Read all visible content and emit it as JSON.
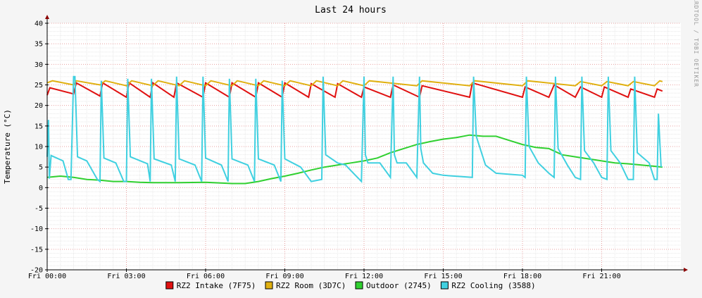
{
  "chart_data": {
    "type": "line",
    "title": "Last 24 hours",
    "ylabel": "Temperature (°C)",
    "xlabel": "",
    "watermark": "RRDTOOL / TOBI OETIKER",
    "ylim": [
      -20,
      40
    ],
    "yticks": [
      40,
      35,
      30,
      25,
      20,
      15,
      10,
      5,
      0,
      -5,
      -10,
      -15,
      -20
    ],
    "ytick_labels": [
      "40",
      "35",
      "30",
      "25",
      "20",
      "15",
      "10",
      "5",
      "0",
      "-5",
      "-10",
      "-15",
      "-20"
    ],
    "xlim": [
      0,
      24
    ],
    "x_unit": "hours since Fri 00:00",
    "xticks": [
      0,
      3,
      6,
      9,
      12,
      15,
      18,
      21
    ],
    "xtick_labels": [
      "Fri 00:00",
      "Fri 03:00",
      "Fri 06:00",
      "Fri 09:00",
      "Fri 12:00",
      "Fri 15:00",
      "Fri 18:00",
      "Fri 21:00"
    ],
    "grid": true,
    "legend_position": "bottom",
    "series": [
      {
        "name": "RZ2 Intake (7F75)",
        "color": "#e01010",
        "x": [
          0.0,
          0.1,
          1.0,
          1.1,
          2.0,
          2.1,
          3.0,
          3.1,
          3.9,
          4.0,
          4.8,
          4.9,
          5.9,
          6.0,
          6.9,
          7.0,
          7.9,
          8.0,
          8.9,
          9.0,
          9.9,
          10.0,
          10.9,
          11.0,
          11.9,
          12.0,
          13.0,
          13.1,
          14.1,
          14.2,
          16.0,
          16.1,
          18.0,
          18.1,
          19.0,
          19.2,
          20.0,
          20.2,
          21.0,
          21.1,
          22.0,
          22.1,
          23.0,
          23.1,
          23.3
        ],
        "y": [
          22.5,
          24.3,
          22.8,
          25.5,
          22.3,
          25.5,
          22.0,
          25.5,
          22.0,
          25.5,
          22.0,
          25.5,
          22.0,
          25.5,
          22.0,
          25.5,
          22.0,
          25.5,
          22.0,
          25.5,
          22.0,
          25.3,
          22.0,
          25.3,
          22.0,
          24.5,
          22.0,
          25.0,
          22.0,
          24.8,
          22.0,
          25.5,
          22.0,
          24.5,
          22.0,
          25.0,
          22.0,
          24.5,
          22.0,
          24.5,
          22.0,
          24.0,
          22.0,
          24.0,
          23.5
        ]
      },
      {
        "name": "RZ2 Room (3D7C)",
        "color": "#e0b010",
        "x": [
          0.0,
          0.2,
          1.0,
          1.1,
          2.0,
          2.2,
          3.0,
          3.2,
          4.0,
          4.2,
          5.0,
          5.2,
          6.0,
          6.2,
          7.0,
          7.2,
          8.0,
          8.2,
          9.0,
          9.2,
          10.0,
          10.2,
          11.0,
          11.2,
          12.0,
          12.2,
          14.0,
          14.2,
          16.0,
          16.2,
          18.0,
          18.2,
          20.0,
          20.2,
          21.0,
          21.2,
          22.0,
          22.2,
          23.0,
          23.2,
          23.3
        ],
        "y": [
          25.5,
          26.0,
          25.0,
          26.0,
          25.0,
          26.0,
          24.8,
          26.0,
          24.8,
          26.0,
          24.8,
          26.0,
          24.8,
          26.0,
          24.8,
          26.0,
          24.8,
          26.0,
          24.8,
          26.0,
          24.8,
          26.0,
          24.8,
          26.0,
          24.8,
          26.0,
          24.8,
          26.0,
          24.8,
          26.0,
          24.8,
          26.0,
          24.8,
          25.8,
          24.8,
          25.8,
          24.8,
          25.8,
          24.8,
          26.0,
          25.8
        ]
      },
      {
        "name": "Outdoor (2745)",
        "color": "#30d030",
        "x": [
          0.0,
          0.5,
          1.0,
          1.5,
          2.0,
          2.5,
          3.0,
          3.5,
          4.0,
          5.0,
          6.0,
          7.0,
          7.5,
          8.0,
          8.5,
          9.0,
          9.5,
          10.0,
          10.5,
          11.0,
          11.5,
          12.0,
          12.5,
          13.0,
          13.5,
          14.0,
          14.5,
          15.0,
          15.5,
          16.0,
          16.5,
          17.0,
          17.5,
          18.0,
          18.5,
          19.0,
          19.5,
          20.0,
          20.5,
          21.0,
          21.5,
          22.0,
          22.5,
          23.0,
          23.3
        ],
        "y": [
          2.5,
          2.8,
          2.5,
          2.0,
          1.8,
          1.5,
          1.5,
          1.3,
          1.2,
          1.2,
          1.3,
          1.0,
          1.0,
          1.5,
          2.2,
          2.8,
          3.5,
          4.3,
          5.0,
          5.5,
          6.0,
          6.5,
          7.2,
          8.5,
          9.5,
          10.5,
          11.2,
          11.8,
          12.2,
          12.8,
          12.5,
          12.5,
          11.5,
          10.5,
          9.8,
          9.5,
          8.0,
          7.5,
          7.0,
          6.5,
          6.0,
          5.8,
          5.5,
          5.2,
          5.0
        ]
      },
      {
        "name": "RZ2 Cooling (3588)",
        "color": "#40d0e0",
        "x": [
          0.0,
          0.05,
          0.08,
          0.15,
          0.6,
          0.8,
          0.9,
          1.0,
          1.05,
          1.15,
          1.5,
          1.9,
          2.0,
          2.05,
          2.15,
          2.6,
          2.9,
          3.0,
          3.05,
          3.15,
          3.8,
          3.9,
          3.95,
          4.05,
          4.7,
          4.85,
          4.9,
          5.0,
          5.6,
          5.85,
          5.9,
          6.0,
          6.6,
          6.85,
          6.9,
          7.0,
          7.6,
          7.85,
          7.9,
          8.0,
          8.6,
          8.85,
          8.9,
          9.0,
          9.6,
          10.0,
          10.4,
          10.45,
          10.55,
          11.0,
          11.3,
          11.9,
          12.0,
          12.05,
          12.15,
          12.6,
          13.0,
          13.1,
          13.15,
          13.25,
          13.6,
          14.0,
          14.1,
          14.15,
          14.25,
          14.6,
          15.0,
          16.1,
          16.15,
          16.25,
          16.6,
          17.0,
          18.0,
          18.1,
          18.15,
          18.25,
          18.6,
          19.0,
          19.2,
          19.25,
          19.35,
          19.7,
          20.0,
          20.2,
          20.25,
          20.35,
          20.7,
          21.0,
          21.2,
          21.25,
          21.35,
          21.7,
          22.0,
          22.2,
          22.25,
          22.35,
          22.8,
          23.0,
          23.1,
          23.15,
          23.25
        ],
        "y": [
          7.5,
          16.5,
          2.2,
          7.8,
          6.5,
          2.0,
          2.0,
          27.0,
          27.0,
          7.5,
          6.5,
          2.0,
          1.5,
          26.0,
          7.2,
          6.0,
          1.5,
          1.5,
          26.5,
          7.5,
          5.8,
          1.5,
          26.5,
          7.0,
          5.5,
          1.5,
          27.0,
          7.0,
          5.5,
          1.5,
          27.0,
          7.2,
          5.5,
          1.5,
          26.5,
          7.0,
          5.5,
          1.5,
          26.5,
          7.0,
          5.5,
          1.5,
          26.0,
          7.0,
          5.0,
          1.5,
          2.0,
          27.0,
          8.0,
          6.0,
          5.5,
          1.5,
          27.0,
          8.0,
          6.0,
          6.0,
          2.5,
          27.0,
          8.0,
          6.0,
          6.0,
          2.5,
          27.0,
          9.5,
          6.0,
          3.5,
          3.0,
          2.5,
          27.0,
          12.5,
          5.5,
          3.5,
          3.0,
          2.5,
          27.0,
          10.0,
          6.0,
          3.5,
          2.5,
          27.0,
          9.5,
          5.5,
          2.5,
          2.0,
          27.0,
          9.0,
          6.0,
          2.5,
          2.0,
          27.0,
          9.0,
          6.0,
          2.0,
          2.0,
          27.0,
          8.5,
          6.0,
          2.0,
          2.0,
          18.0,
          5.0
        ]
      }
    ]
  }
}
